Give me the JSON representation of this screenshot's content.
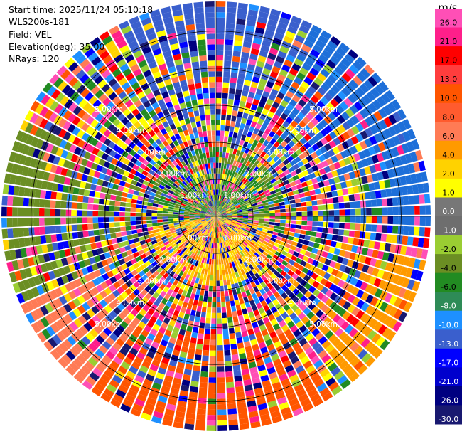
{
  "header": {
    "start_time": "Start time: 2025/11/24 05:10:18",
    "instrument": "WLS200s-181",
    "field": "Field: VEL",
    "elevation": "Elevation(deg): 35.00",
    "nrays": "NRays: 120"
  },
  "chart_data": {
    "type": "heatmap",
    "subtype": "polar-ppi",
    "title": "",
    "n_rays": 120,
    "elevation_deg": 35.0,
    "max_range_km": 5.8,
    "range_rings_km": [
      1,
      2,
      3,
      4,
      5
    ],
    "range_ring_labels": [
      "1.00km",
      "2.00km",
      "3.00km",
      "4.00km",
      "5.00km"
    ],
    "colorbar": {
      "unit": "m/s",
      "ticks": [
        "26.0",
        "21.0",
        "17.0",
        "13.0",
        "10.0",
        "8.0",
        "6.0",
        "4.0",
        "2.0",
        "1.0",
        "0.0",
        "-1.0",
        "-2.0",
        "-4.0",
        "-6.0",
        "-8.0",
        "-10.0",
        "-13.0",
        "-17.0",
        "-21.0",
        "-26.0",
        "-30.0"
      ],
      "colors": [
        "#ff4fb6",
        "#ff1f8a",
        "#ff0000",
        "#ff3d3d",
        "#ff5500",
        "#ff5b2e",
        "#ff7b55",
        "#ff9a00",
        "#ffd200",
        "#ffff00",
        "#777777",
        "#6e6e6e",
        "#9acd32",
        "#6b8e23",
        "#228b22",
        "#2e8b57",
        "#1e90ff",
        "#3a5fcd",
        "#0000ff",
        "#0000cd",
        "#000080",
        "#191970"
      ]
    },
    "pattern": {
      "note_colors": {
        "east_top": "#1e6fd9",
        "west": "#6b8e23",
        "south": "#ff5500",
        "southwest": "#ff7b55",
        "north_top": "#3a5fcd",
        "center": "#228b22"
      }
    }
  }
}
